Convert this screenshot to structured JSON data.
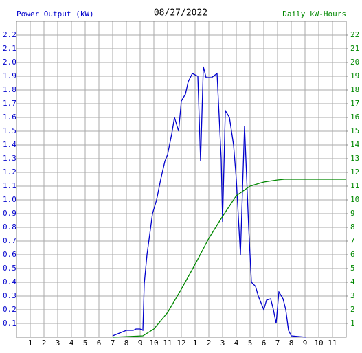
{
  "chart_data": {
    "type": "line",
    "title": "08/27/2022",
    "y_label": "Power Output (kW)",
    "y2_label": "Daily kW-Hours",
    "xlim": [
      0,
      24
    ],
    "xticks": [
      1,
      2,
      3,
      4,
      5,
      6,
      7,
      8,
      9,
      10,
      11,
      {
        "value": 12,
        "label": "12"
      },
      {
        "value": 13,
        "label": "1"
      },
      {
        "value": 14,
        "label": "2"
      },
      {
        "value": 15,
        "label": "3"
      },
      {
        "value": 16,
        "label": "4"
      },
      {
        "value": 17,
        "label": "5"
      },
      {
        "value": 18,
        "label": "6"
      },
      {
        "value": 19,
        "label": "7"
      },
      {
        "value": 20,
        "label": "8"
      },
      {
        "value": 21,
        "label": "9"
      },
      {
        "value": 22,
        "label": "10"
      },
      {
        "value": 23,
        "label": "11"
      }
    ],
    "ylim": [
      0,
      2.3
    ],
    "yticks": [
      0.1,
      0.2,
      0.3,
      0.4,
      0.5,
      0.6,
      0.7,
      0.8,
      0.9,
      {
        "value": 1,
        "label": "1.0"
      },
      1.1,
      1.2,
      1.3,
      1.4,
      1.5,
      1.6,
      1.7,
      1.8,
      1.9,
      {
        "value": 2,
        "label": "2.0"
      },
      2.1,
      2.2
    ],
    "y2lim": [
      0,
      23
    ],
    "y2ticks": [
      1,
      2,
      3,
      4,
      5,
      6,
      7,
      8,
      9,
      10,
      11,
      12,
      13,
      14,
      15,
      16,
      17,
      18,
      19,
      20,
      21,
      22
    ],
    "grid": true,
    "series": [
      {
        "name": "Power Output (kW)",
        "color": "#0000cc",
        "x": [
          7,
          7.5,
          8,
          8.5,
          8.7,
          9,
          9.2,
          9.3,
          9.5,
          9.7,
          9.9,
          10.2,
          10.5,
          10.8,
          11,
          11.3,
          11.5,
          11.8,
          12,
          12.3,
          12.5,
          12.8,
          13.2,
          13.4,
          13.6,
          13.8,
          14.2,
          14.6,
          14.9,
          15,
          15.2,
          15.5,
          15.8,
          16,
          16.3,
          16.6,
          16.9,
          17.1,
          17.4,
          17.6,
          17.8,
          18,
          18.2,
          18.5,
          18.7,
          18.9,
          19.1,
          19.4,
          19.6,
          19.8,
          20,
          21.1
        ],
        "values": [
          0.01,
          0.03,
          0.05,
          0.05,
          0.06,
          0.06,
          0.05,
          0.39,
          0.6,
          0.75,
          0.9,
          1.0,
          1.15,
          1.28,
          1.33,
          1.48,
          1.6,
          1.5,
          1.72,
          1.77,
          1.86,
          1.92,
          1.9,
          1.28,
          1.97,
          1.89,
          1.89,
          1.92,
          1.3,
          0.84,
          1.65,
          1.6,
          1.4,
          1.15,
          0.6,
          1.54,
          0.8,
          0.4,
          0.37,
          0.3,
          0.25,
          0.2,
          0.27,
          0.28,
          0.2,
          0.1,
          0.33,
          0.28,
          0.2,
          0.05,
          0.01,
          0
        ]
      },
      {
        "name": "Daily kW-Hours",
        "color": "#008800",
        "axis": "y2",
        "x": [
          7,
          9.2,
          10,
          11,
          12,
          13,
          14,
          15,
          16,
          17,
          18,
          19,
          19.5,
          24
        ],
        "values": [
          0,
          0.1,
          0.6,
          1.8,
          3.5,
          5.3,
          7.2,
          8.8,
          10.3,
          11,
          11.3,
          11.45,
          11.5,
          11.5
        ]
      }
    ]
  }
}
